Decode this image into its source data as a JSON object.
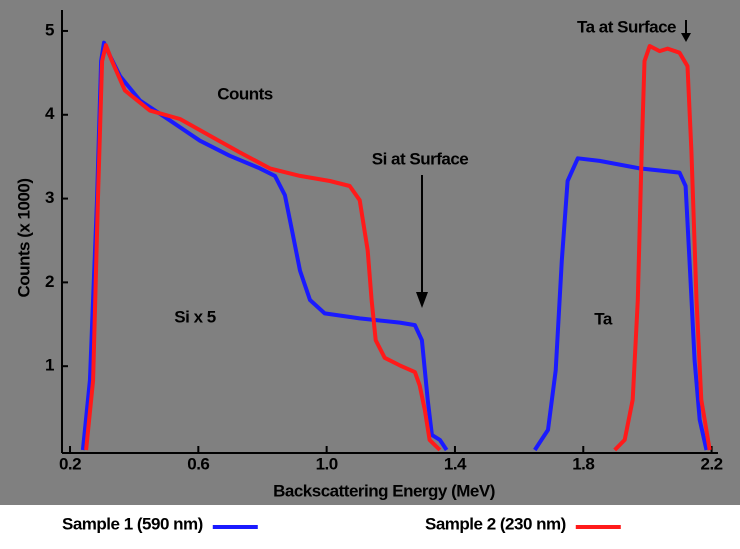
{
  "chart_data": {
    "type": "line",
    "xlabel": "Backscattering Energy (MeV)",
    "ylabel": "Counts (x 1000)",
    "annotations": {
      "counts": "Counts",
      "si_surface": "Si at Surface",
      "si_x5": "Si x 5",
      "ta": "Ta",
      "ta_surface": "Ta at Surface"
    },
    "xlim": [
      0.175,
      2.22
    ],
    "ylim": [
      0,
      5.25
    ],
    "xticks": [
      {
        "value": 0.2,
        "label": "0.2"
      },
      {
        "value": 0.6,
        "label": "0.6"
      },
      {
        "value": 1.0,
        "label": "1.0"
      },
      {
        "value": 1.4,
        "label": "1.4"
      },
      {
        "value": 1.8,
        "label": "1.8"
      },
      {
        "value": 2.2,
        "label": "2.2"
      }
    ],
    "yticks": [
      1,
      2,
      3,
      4,
      5
    ],
    "series": [
      {
        "name": "Sample 1 (590 nm)",
        "color": "#1a1aff",
        "x": [
          0.24,
          0.262,
          0.284,
          0.297,
          0.306,
          0.325,
          0.356,
          0.418,
          0.512,
          0.605,
          0.698,
          0.792,
          0.839,
          0.87,
          0.892,
          0.917,
          0.948,
          0.994,
          1.103,
          1.228,
          1.275,
          1.297,
          1.315,
          1.328,
          1.353,
          1.374,
          1.5,
          1.649,
          1.69,
          1.714,
          1.733,
          1.751,
          1.783,
          1.851,
          1.976,
          2.1,
          2.119,
          2.131,
          2.147,
          2.163,
          2.184
        ],
        "values": [
          0,
          0.83,
          2.98,
          4.64,
          4.86,
          4.7,
          4.46,
          4.17,
          3.93,
          3.69,
          3.51,
          3.36,
          3.27,
          3.04,
          2.62,
          2.14,
          1.79,
          1.63,
          1.57,
          1.52,
          1.49,
          1.31,
          0.6,
          0.18,
          0.12,
          0,
          null,
          0,
          0.24,
          0.95,
          2.26,
          3.21,
          3.48,
          3.45,
          3.36,
          3.31,
          3.15,
          2.26,
          1.07,
          0.36,
          0
        ]
      },
      {
        "name": "Sample 2 (230 nm)",
        "color": "#ff1a1a",
        "x": [
          0.25,
          0.272,
          0.287,
          0.3,
          0.312,
          0.331,
          0.371,
          0.449,
          0.543,
          0.636,
          0.73,
          0.823,
          0.917,
          1.01,
          1.072,
          1.103,
          1.128,
          1.14,
          1.153,
          1.181,
          1.228,
          1.275,
          1.29,
          1.306,
          1.321,
          1.353,
          1.6,
          1.898,
          1.929,
          1.954,
          1.97,
          1.982,
          1.991,
          2.007,
          2.038,
          2.063,
          2.1,
          2.125,
          2.137,
          2.153,
          2.168,
          2.194
        ],
        "values": [
          0,
          0.83,
          2.98,
          4.64,
          4.83,
          4.64,
          4.29,
          4.05,
          3.95,
          3.75,
          3.55,
          3.36,
          3.27,
          3.21,
          3.15,
          2.98,
          2.38,
          1.79,
          1.31,
          1.1,
          1.01,
          0.93,
          0.77,
          0.48,
          0.12,
          0,
          null,
          0,
          0.12,
          0.6,
          1.79,
          3.57,
          4.64,
          4.82,
          4.76,
          4.79,
          4.74,
          4.58,
          3.57,
          1.79,
          0.6,
          0
        ]
      }
    ]
  }
}
